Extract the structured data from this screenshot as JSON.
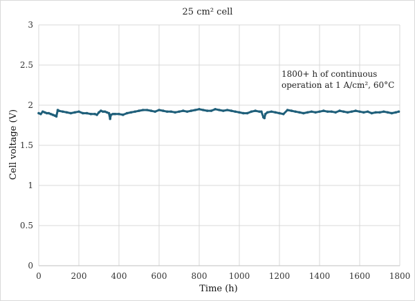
{
  "chart_data": {
    "type": "scatter",
    "title": "25 cm² cell",
    "xlabel": "Time (h)",
    "ylabel": "Cell voltage (V)",
    "xlim": [
      0,
      1800
    ],
    "ylim": [
      0,
      3
    ],
    "xticks": [
      "0",
      "200",
      "400",
      "600",
      "800",
      "1000",
      "1200",
      "1400",
      "1600",
      "1800"
    ],
    "yticks": [
      "0",
      "0.5",
      "1",
      "1.5",
      "2",
      "2.5",
      "3"
    ],
    "grid": true,
    "annotation_lines": [
      "1800+ h of continuous",
      "operation at 1 A/cm², 60°C"
    ],
    "series": [
      {
        "name": "Cell voltage",
        "color": "#1f5f7a",
        "x": [
          0,
          10,
          20,
          30,
          40,
          50,
          60,
          70,
          80,
          88,
          95,
          100,
          120,
          140,
          160,
          180,
          200,
          220,
          240,
          260,
          280,
          290,
          300,
          310,
          320,
          330,
          340,
          350,
          356,
          360,
          370,
          380,
          400,
          420,
          440,
          460,
          480,
          500,
          520,
          540,
          560,
          580,
          600,
          620,
          640,
          660,
          680,
          700,
          720,
          740,
          760,
          780,
          800,
          820,
          840,
          860,
          880,
          900,
          920,
          940,
          960,
          980,
          1000,
          1020,
          1040,
          1060,
          1080,
          1100,
          1110,
          1120,
          1125,
          1130,
          1140,
          1160,
          1180,
          1200,
          1220,
          1240,
          1260,
          1280,
          1300,
          1320,
          1340,
          1360,
          1380,
          1400,
          1420,
          1440,
          1460,
          1480,
          1500,
          1520,
          1540,
          1560,
          1580,
          1600,
          1620,
          1640,
          1660,
          1680,
          1700,
          1720,
          1740,
          1760,
          1780,
          1795
        ],
        "y": [
          1.9,
          1.89,
          1.92,
          1.91,
          1.9,
          1.9,
          1.89,
          1.88,
          1.87,
          1.86,
          1.94,
          1.93,
          1.92,
          1.91,
          1.9,
          1.91,
          1.92,
          1.9,
          1.9,
          1.89,
          1.89,
          1.88,
          1.91,
          1.93,
          1.92,
          1.92,
          1.91,
          1.9,
          1.83,
          1.88,
          1.89,
          1.89,
          1.89,
          1.88,
          1.9,
          1.91,
          1.92,
          1.93,
          1.94,
          1.94,
          1.93,
          1.92,
          1.94,
          1.93,
          1.92,
          1.92,
          1.91,
          1.92,
          1.93,
          1.92,
          1.93,
          1.94,
          1.95,
          1.94,
          1.93,
          1.93,
          1.95,
          1.94,
          1.93,
          1.94,
          1.93,
          1.92,
          1.91,
          1.9,
          1.9,
          1.92,
          1.93,
          1.92,
          1.92,
          1.85,
          1.84,
          1.89,
          1.91,
          1.92,
          1.91,
          1.9,
          1.89,
          1.94,
          1.93,
          1.92,
          1.91,
          1.9,
          1.91,
          1.92,
          1.91,
          1.92,
          1.93,
          1.92,
          1.92,
          1.91,
          1.93,
          1.92,
          1.91,
          1.92,
          1.93,
          1.92,
          1.91,
          1.92,
          1.9,
          1.91,
          1.91,
          1.92,
          1.91,
          1.9,
          1.91,
          1.92
        ]
      }
    ]
  }
}
